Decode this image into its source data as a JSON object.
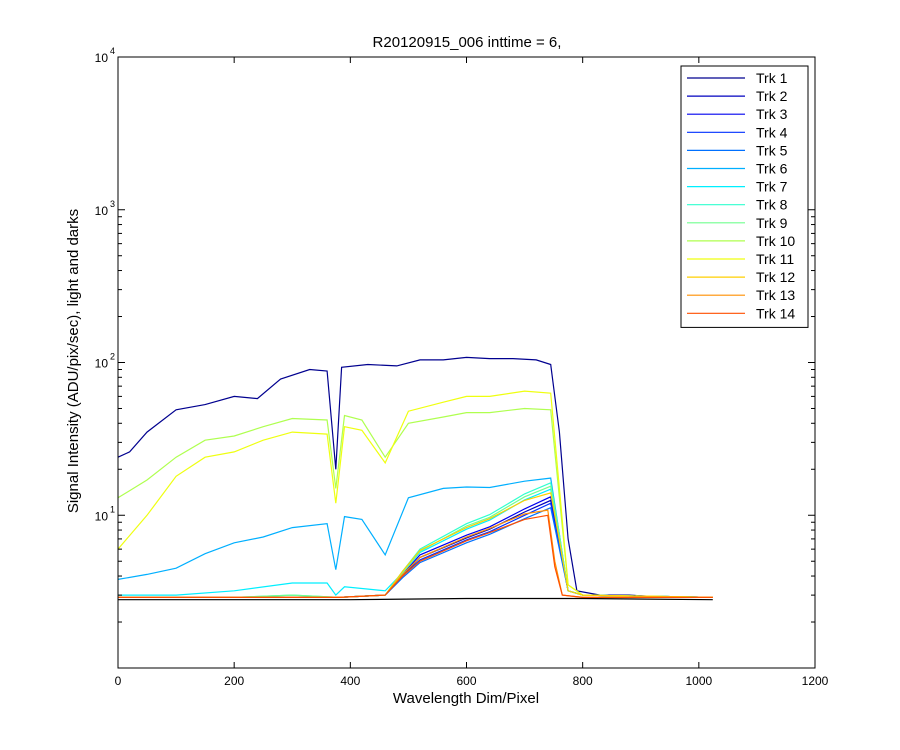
{
  "chart_data": {
    "type": "line",
    "title": "R20120915_006 inttime = 6,",
    "xlabel": "Wavelength Dim/Pixel",
    "ylabel": "Signal Intensity (ADU/pix/sec), light and darks",
    "xlim": [
      0,
      1200
    ],
    "ylim": [
      1,
      10000
    ],
    "yscale": "log",
    "grid": false,
    "legend_position": "top-right",
    "x_ticks": [
      "0",
      "200",
      "400",
      "600",
      "800",
      "1000",
      "1200"
    ],
    "y_ticks": [
      {
        "base": "10",
        "exp": "1",
        "value": 10
      },
      {
        "base": "10",
        "exp": "2",
        "value": 100
      },
      {
        "base": "10",
        "exp": "3",
        "value": 1000
      },
      {
        "base": "10",
        "exp": "4",
        "value": 10000
      }
    ],
    "series": [
      {
        "name": "Trk 1",
        "color": "#00008f",
        "points": [
          [
            0,
            24
          ],
          [
            20,
            26
          ],
          [
            50,
            35
          ],
          [
            100,
            49
          ],
          [
            150,
            53
          ],
          [
            200,
            60
          ],
          [
            240,
            58
          ],
          [
            280,
            78
          ],
          [
            330,
            90
          ],
          [
            360,
            88
          ],
          [
            375,
            20
          ],
          [
            385,
            93
          ],
          [
            430,
            97
          ],
          [
            480,
            95
          ],
          [
            520,
            104
          ],
          [
            560,
            104
          ],
          [
            600,
            108
          ],
          [
            640,
            106
          ],
          [
            680,
            106
          ],
          [
            720,
            104
          ],
          [
            745,
            97
          ],
          [
            760,
            35
          ],
          [
            775,
            7
          ],
          [
            790,
            3.2
          ],
          [
            830,
            3.0
          ],
          [
            880,
            3.0
          ],
          [
            950,
            2.9
          ],
          [
            1024,
            2.9
          ]
        ]
      },
      {
        "name": "Trk 2",
        "color": "#0000bf",
        "points": [
          [
            0,
            2.9
          ],
          [
            100,
            2.9
          ],
          [
            200,
            2.9
          ],
          [
            300,
            2.9
          ],
          [
            380,
            2.9
          ],
          [
            460,
            3.0
          ],
          [
            490,
            4.0
          ],
          [
            520,
            5.3
          ],
          [
            600,
            7.1
          ],
          [
            640,
            8.1
          ],
          [
            700,
            10.5
          ],
          [
            745,
            12.5
          ],
          [
            760,
            6.5
          ],
          [
            775,
            3.2
          ],
          [
            800,
            3.0
          ],
          [
            1024,
            2.9
          ]
        ]
      },
      {
        "name": "Trk 3",
        "color": "#0000ef",
        "points": [
          [
            0,
            2.9
          ],
          [
            100,
            2.9
          ],
          [
            200,
            2.9
          ],
          [
            300,
            2.9
          ],
          [
            380,
            2.9
          ],
          [
            460,
            3.0
          ],
          [
            490,
            4.1
          ],
          [
            520,
            5.5
          ],
          [
            600,
            7.4
          ],
          [
            640,
            8.4
          ],
          [
            700,
            11
          ],
          [
            745,
            13.2
          ],
          [
            760,
            6.8
          ],
          [
            775,
            3.2
          ],
          [
            800,
            3.0
          ],
          [
            1024,
            2.9
          ]
        ]
      },
      {
        "name": "Trk 4",
        "color": "#0030ff",
        "points": [
          [
            0,
            2.9
          ],
          [
            100,
            2.9
          ],
          [
            200,
            2.9
          ],
          [
            300,
            2.9
          ],
          [
            380,
            2.9
          ],
          [
            460,
            3.0
          ],
          [
            490,
            4.0
          ],
          [
            520,
            5.1
          ],
          [
            600,
            6.9
          ],
          [
            640,
            7.8
          ],
          [
            700,
            10
          ],
          [
            745,
            12
          ],
          [
            760,
            6.3
          ],
          [
            775,
            3.2
          ],
          [
            800,
            3.0
          ],
          [
            1024,
            2.9
          ]
        ]
      },
      {
        "name": "Trk 5",
        "color": "#0070ff",
        "points": [
          [
            0,
            2.9
          ],
          [
            100,
            2.9
          ],
          [
            200,
            2.9
          ],
          [
            300,
            2.9
          ],
          [
            380,
            2.9
          ],
          [
            460,
            3.0
          ],
          [
            490,
            3.9
          ],
          [
            520,
            4.9
          ],
          [
            600,
            6.6
          ],
          [
            640,
            7.5
          ],
          [
            700,
            9.5
          ],
          [
            745,
            11.2
          ],
          [
            760,
            6
          ],
          [
            775,
            3.2
          ],
          [
            800,
            3.0
          ],
          [
            1024,
            2.9
          ]
        ]
      },
      {
        "name": "Trk 6",
        "color": "#00afff",
        "points": [
          [
            0,
            3.8
          ],
          [
            50,
            4.1
          ],
          [
            100,
            4.5
          ],
          [
            150,
            5.6
          ],
          [
            200,
            6.6
          ],
          [
            250,
            7.2
          ],
          [
            300,
            8.3
          ],
          [
            360,
            8.8
          ],
          [
            375,
            4.4
          ],
          [
            390,
            9.8
          ],
          [
            420,
            9.4
          ],
          [
            460,
            5.5
          ],
          [
            500,
            13
          ],
          [
            560,
            15
          ],
          [
            600,
            15.3
          ],
          [
            640,
            15.2
          ],
          [
            700,
            16.7
          ],
          [
            745,
            17.5
          ],
          [
            760,
            7.5
          ],
          [
            775,
            3.2
          ],
          [
            800,
            3.0
          ],
          [
            1024,
            2.9
          ]
        ]
      },
      {
        "name": "Trk 7",
        "color": "#00efff",
        "points": [
          [
            0,
            3.0
          ],
          [
            100,
            3.0
          ],
          [
            200,
            3.2
          ],
          [
            300,
            3.6
          ],
          [
            360,
            3.6
          ],
          [
            375,
            3.0
          ],
          [
            390,
            3.4
          ],
          [
            460,
            3.2
          ],
          [
            490,
            4.2
          ],
          [
            520,
            5.7
          ],
          [
            600,
            8.1
          ],
          [
            640,
            9.3
          ],
          [
            700,
            12.6
          ],
          [
            745,
            14.8
          ],
          [
            760,
            7.2
          ],
          [
            775,
            3.2
          ],
          [
            800,
            3.0
          ],
          [
            1024,
            2.9
          ]
        ]
      },
      {
        "name": "Trk 8",
        "color": "#30ff cf",
        "points": [
          [
            0,
            2.9
          ],
          [
            100,
            2.9
          ],
          [
            200,
            2.9
          ],
          [
            300,
            3.0
          ],
          [
            380,
            2.9
          ],
          [
            460,
            3.0
          ],
          [
            490,
            4.3
          ],
          [
            520,
            6
          ],
          [
            600,
            8.8
          ],
          [
            640,
            10.1
          ],
          [
            700,
            13.8
          ],
          [
            745,
            16.3
          ],
          [
            760,
            7.5
          ],
          [
            775,
            3.2
          ],
          [
            800,
            3.0
          ],
          [
            1024,
            2.9
          ]
        ]
      },
      {
        "name": "Trk 9",
        "color": "#70ff8f",
        "points": [
          [
            0,
            2.9
          ],
          [
            100,
            2.9
          ],
          [
            200,
            2.9
          ],
          [
            300,
            3.0
          ],
          [
            380,
            2.9
          ],
          [
            460,
            3.0
          ],
          [
            490,
            4.2
          ],
          [
            520,
            5.8
          ],
          [
            600,
            8.5
          ],
          [
            640,
            9.7
          ],
          [
            700,
            13.2
          ],
          [
            745,
            15.5
          ],
          [
            760,
            7.3
          ],
          [
            775,
            3.2
          ],
          [
            800,
            3.0
          ],
          [
            1024,
            2.9
          ]
        ]
      },
      {
        "name": "Trk 10",
        "color": "#afff4f",
        "points": [
          [
            0,
            13
          ],
          [
            50,
            17
          ],
          [
            100,
            24
          ],
          [
            150,
            31
          ],
          [
            200,
            33
          ],
          [
            250,
            38
          ],
          [
            300,
            43
          ],
          [
            360,
            42
          ],
          [
            375,
            15
          ],
          [
            390,
            45
          ],
          [
            420,
            42
          ],
          [
            460,
            24
          ],
          [
            500,
            40
          ],
          [
            560,
            44
          ],
          [
            600,
            47
          ],
          [
            640,
            47
          ],
          [
            700,
            50
          ],
          [
            745,
            49
          ],
          [
            760,
            13
          ],
          [
            775,
            3.5
          ],
          [
            800,
            3.0
          ],
          [
            1024,
            2.9
          ]
        ]
      },
      {
        "name": "Trk 11",
        "color": "#efff0f",
        "points": [
          [
            0,
            6
          ],
          [
            50,
            10
          ],
          [
            100,
            18
          ],
          [
            150,
            24
          ],
          [
            200,
            26
          ],
          [
            250,
            31
          ],
          [
            300,
            35
          ],
          [
            360,
            34
          ],
          [
            375,
            12
          ],
          [
            390,
            38
          ],
          [
            420,
            36
          ],
          [
            460,
            22
          ],
          [
            500,
            48
          ],
          [
            560,
            55
          ],
          [
            600,
            60
          ],
          [
            640,
            60
          ],
          [
            700,
            65
          ],
          [
            745,
            63
          ],
          [
            760,
            15
          ],
          [
            775,
            3.5
          ],
          [
            800,
            3.0
          ],
          [
            1024,
            2.9
          ]
        ]
      },
      {
        "name": "Trk 12",
        "color": "#ffcf00",
        "points": [
          [
            0,
            2.9
          ],
          [
            100,
            2.9
          ],
          [
            200,
            2.9
          ],
          [
            300,
            2.9
          ],
          [
            380,
            2.9
          ],
          [
            460,
            3.0
          ],
          [
            490,
            4.3
          ],
          [
            520,
            5.9
          ],
          [
            600,
            8.3
          ],
          [
            640,
            9.5
          ],
          [
            700,
            12.5
          ],
          [
            745,
            14
          ],
          [
            760,
            6.8
          ],
          [
            775,
            3.2
          ],
          [
            800,
            3.0
          ],
          [
            1024,
            2.9
          ]
        ]
      },
      {
        "name": "Trk 13",
        "color": "#ff8f00",
        "points": [
          [
            0,
            2.9
          ],
          [
            100,
            2.9
          ],
          [
            200,
            2.9
          ],
          [
            300,
            2.9
          ],
          [
            380,
            2.9
          ],
          [
            460,
            3.0
          ],
          [
            490,
            4.1
          ],
          [
            520,
            5.3
          ],
          [
            600,
            7.2
          ],
          [
            640,
            8.2
          ],
          [
            700,
            10.2
          ],
          [
            740,
            10.8
          ],
          [
            752,
            5
          ],
          [
            765,
            3.0
          ],
          [
            800,
            2.9
          ],
          [
            1024,
            2.9
          ]
        ]
      },
      {
        "name": "Trk 14",
        "color": "#ff4f00",
        "points": [
          [
            0,
            2.9
          ],
          [
            100,
            2.9
          ],
          [
            200,
            2.9
          ],
          [
            300,
            2.9
          ],
          [
            380,
            2.9
          ],
          [
            460,
            3.0
          ],
          [
            490,
            4.0
          ],
          [
            520,
            5.0
          ],
          [
            600,
            6.8
          ],
          [
            640,
            7.7
          ],
          [
            700,
            9.4
          ],
          [
            740,
            10
          ],
          [
            752,
            4.6
          ],
          [
            765,
            3.0
          ],
          [
            800,
            2.9
          ],
          [
            1024,
            2.9
          ]
        ]
      },
      {
        "name": "",
        "color": "#000000",
        "points": [
          [
            0,
            2.8
          ],
          [
            200,
            2.8
          ],
          [
            400,
            2.8
          ],
          [
            600,
            2.85
          ],
          [
            800,
            2.85
          ],
          [
            1024,
            2.8
          ]
        ]
      }
    ]
  }
}
